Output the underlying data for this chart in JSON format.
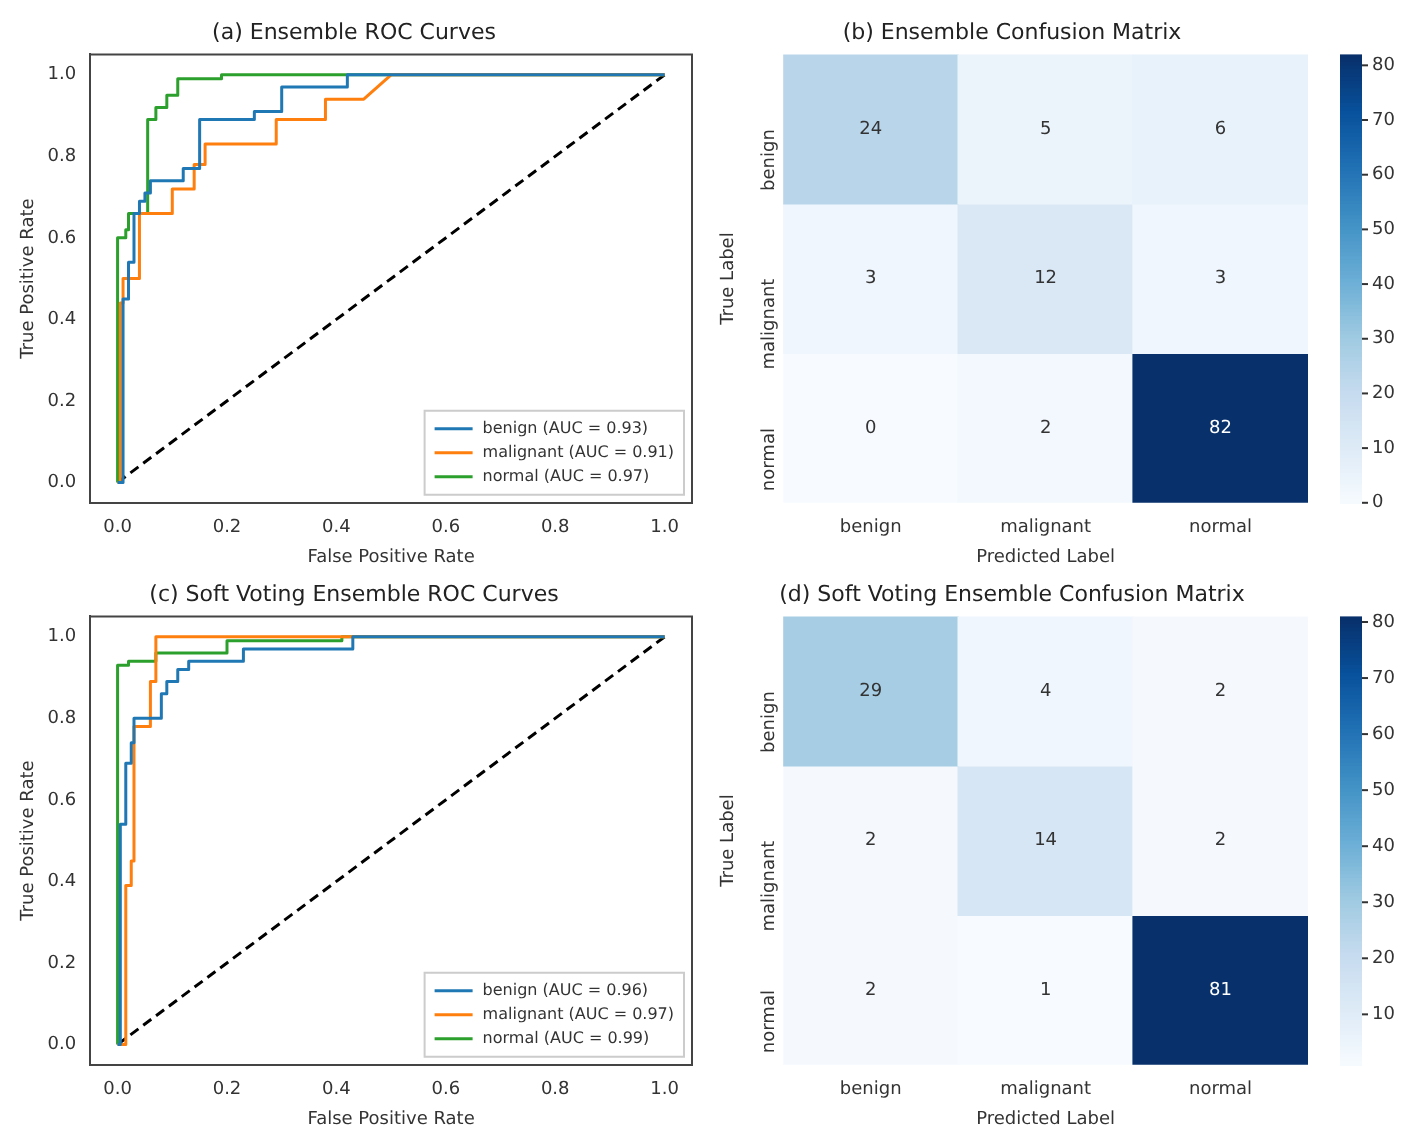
{
  "chart_data": [
    {
      "type": "line",
      "title": "(a) Ensemble ROC Curves",
      "xlabel": "False Positive Rate",
      "ylabel": "True Positive Rate",
      "xlim": [
        -0.05,
        1.05
      ],
      "ylim": [
        -0.05,
        1.05
      ],
      "xticks": [
        {
          "value": 0,
          "label": "0.0"
        },
        {
          "value": 0.2,
          "label": "0.2"
        },
        {
          "value": 0.4,
          "label": "0.4"
        },
        {
          "value": 0.6,
          "label": "0.6"
        },
        {
          "value": 0.8,
          "label": "0.8"
        },
        {
          "value": 1,
          "label": "1.0"
        }
      ],
      "yticks": [
        {
          "value": 0,
          "label": "0.0"
        },
        {
          "value": 0.2,
          "label": "0.2"
        },
        {
          "value": 0.4,
          "label": "0.4"
        },
        {
          "value": 0.6,
          "label": "0.6"
        },
        {
          "value": 0.8,
          "label": "0.8"
        },
        {
          "value": 1,
          "label": "1.0"
        }
      ],
      "legend": "bottom right",
      "series": [
        {
          "name": "benign (AUC = 0.93)",
          "color": "#1f77b4",
          "x": [
            0,
            0.01,
            0.01,
            0.02,
            0.02,
            0.03,
            0.03,
            0.04,
            0.04,
            0.05,
            0.05,
            0.06,
            0.06,
            0.12,
            0.12,
            0.15,
            0.15,
            0.25,
            0.25,
            0.3,
            0.3,
            0.42,
            0.42,
            1
          ],
          "values": [
            0,
            0,
            0.45,
            0.45,
            0.54,
            0.54,
            0.66,
            0.66,
            0.69,
            0.69,
            0.71,
            0.71,
            0.74,
            0.74,
            0.77,
            0.77,
            0.89,
            0.89,
            0.91,
            0.91,
            0.97,
            0.97,
            1,
            1
          ]
        },
        {
          "name": "malignant (AUC = 0.91)",
          "color": "#ff7f0e",
          "x": [
            0,
            0.005,
            0.005,
            0.01,
            0.01,
            0.04,
            0.04,
            0.1,
            0.1,
            0.14,
            0.14,
            0.16,
            0.16,
            0.29,
            0.29,
            0.38,
            0.38,
            0.45,
            0.5,
            1
          ],
          "values": [
            0,
            0,
            0.44,
            0.44,
            0.5,
            0.5,
            0.66,
            0.66,
            0.72,
            0.72,
            0.78,
            0.78,
            0.83,
            0.83,
            0.89,
            0.89,
            0.94,
            0.94,
            1,
            1
          ]
        },
        {
          "name": "normal (AUC = 0.97)",
          "color": "#2ca02c",
          "x": [
            0,
            0,
            0.015,
            0.015,
            0.02,
            0.02,
            0.055,
            0.055,
            0.07,
            0.07,
            0.09,
            0.09,
            0.11,
            0.11,
            0.19,
            0.19,
            1
          ],
          "values": [
            0,
            0.6,
            0.6,
            0.62,
            0.62,
            0.66,
            0.66,
            0.89,
            0.89,
            0.92,
            0.92,
            0.95,
            0.95,
            0.99,
            0.99,
            1,
            1
          ]
        },
        {
          "color": "#000000",
          "line_style": "dashed",
          "x": [
            0,
            1
          ],
          "values": [
            0,
            1
          ]
        }
      ]
    },
    {
      "type": "heatmap",
      "title": "(b) Ensemble Confusion Matrix",
      "xlabel": "Predicted Label",
      "ylabel": "True Label",
      "categories": [
        "benign",
        "malignant",
        "normal"
      ],
      "y_categories": [
        "benign",
        "malignant",
        "normal"
      ],
      "cells": [
        [
          24,
          5,
          6
        ],
        [
          3,
          12,
          3
        ],
        [
          0,
          2,
          82
        ]
      ],
      "data_labels": true,
      "clim": [
        0,
        82
      ],
      "cticks": [
        0,
        10,
        20,
        30,
        40,
        50,
        60,
        70,
        80
      ]
    },
    {
      "type": "line",
      "title": "(c) Soft Voting Ensemble ROC Curves",
      "xlabel": "False Positive Rate",
      "ylabel": "True Positive Rate",
      "xlim": [
        -0.05,
        1.05
      ],
      "ylim": [
        -0.05,
        1.05
      ],
      "xticks": [
        {
          "value": 0,
          "label": "0.0"
        },
        {
          "value": 0.2,
          "label": "0.2"
        },
        {
          "value": 0.4,
          "label": "0.4"
        },
        {
          "value": 0.6,
          "label": "0.6"
        },
        {
          "value": 0.8,
          "label": "0.8"
        },
        {
          "value": 1,
          "label": "1.0"
        }
      ],
      "yticks": [
        {
          "value": 0,
          "label": "0.0"
        },
        {
          "value": 0.2,
          "label": "0.2"
        },
        {
          "value": 0.4,
          "label": "0.4"
        },
        {
          "value": 0.6,
          "label": "0.6"
        },
        {
          "value": 0.8,
          "label": "0.8"
        },
        {
          "value": 1,
          "label": "1.0"
        }
      ],
      "legend": "bottom right",
      "series": [
        {
          "name": "benign (AUC = 0.96)",
          "color": "#1f77b4",
          "x": [
            0,
            0.005,
            0.005,
            0.015,
            0.015,
            0.025,
            0.025,
            0.03,
            0.03,
            0.08,
            0.08,
            0.09,
            0.09,
            0.11,
            0.11,
            0.13,
            0.13,
            0.23,
            0.23,
            0.43,
            0.43,
            1
          ],
          "values": [
            0,
            0,
            0.54,
            0.54,
            0.69,
            0.69,
            0.74,
            0.74,
            0.8,
            0.8,
            0.86,
            0.86,
            0.89,
            0.89,
            0.92,
            0.92,
            0.94,
            0.94,
            0.97,
            0.97,
            1,
            1
          ]
        },
        {
          "name": "malignant (AUC = 0.97)",
          "color": "#ff7f0e",
          "x": [
            0,
            0.015,
            0.015,
            0.025,
            0.025,
            0.03,
            0.03,
            0.06,
            0.06,
            0.07,
            0.07,
            1
          ],
          "values": [
            0,
            0,
            0.39,
            0.39,
            0.45,
            0.45,
            0.78,
            0.78,
            0.89,
            0.89,
            1,
            1
          ]
        },
        {
          "name": "normal (AUC = 0.99)",
          "color": "#2ca02c",
          "x": [
            0,
            0,
            0.02,
            0.02,
            0.07,
            0.07,
            0.2,
            0.2,
            0.41,
            0.41,
            1
          ],
          "values": [
            0,
            0.93,
            0.93,
            0.94,
            0.94,
            0.96,
            0.96,
            0.99,
            0.99,
            1,
            1
          ]
        },
        {
          "color": "#000000",
          "line_style": "dashed",
          "x": [
            0,
            1
          ],
          "values": [
            0,
            1
          ]
        }
      ]
    },
    {
      "type": "heatmap",
      "title": "(d) Soft Voting Ensemble Confusion Matrix",
      "xlabel": "Predicted Label",
      "ylabel": "True Label",
      "categories": [
        "benign",
        "malignant",
        "normal"
      ],
      "y_categories": [
        "benign",
        "malignant",
        "normal"
      ],
      "cells": [
        [
          29,
          4,
          2
        ],
        [
          2,
          14,
          2
        ],
        [
          2,
          1,
          81
        ]
      ],
      "data_labels": true,
      "clim": [
        1,
        81
      ],
      "cticks": [
        10,
        20,
        30,
        40,
        50,
        60,
        70,
        80
      ]
    }
  ]
}
